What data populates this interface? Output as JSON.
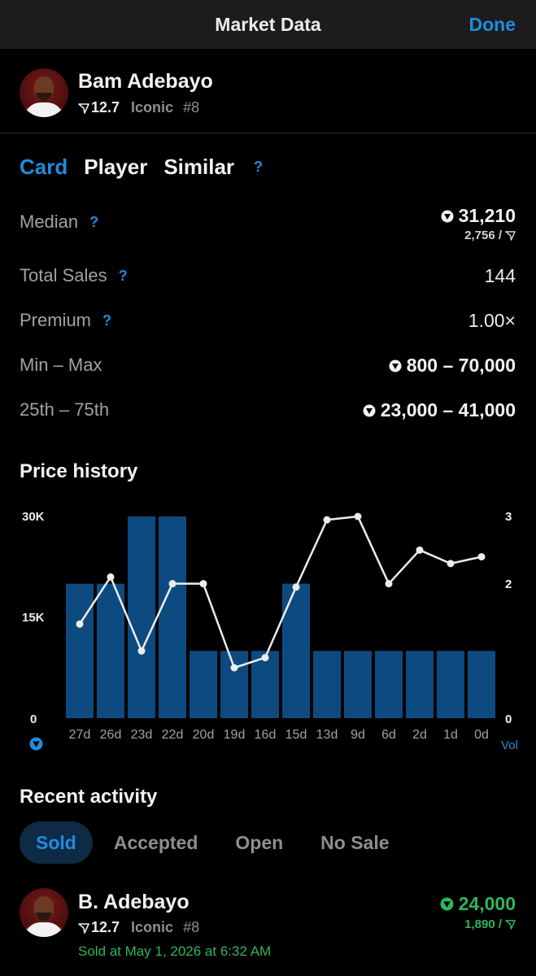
{
  "nav": {
    "title": "Market Data",
    "done_label": "Done"
  },
  "card": {
    "player_name": "Bam Adebayo",
    "rating": "12.7",
    "tier": "Iconic",
    "serial": "#8"
  },
  "tabs": {
    "card": "Card",
    "player": "Player",
    "similar": "Similar",
    "help": "?"
  },
  "stats": {
    "median_label": "Median",
    "median_value": "31,210",
    "median_sub": "2,756 /",
    "total_sales_label": "Total Sales",
    "total_sales_value": "144",
    "premium_label": "Premium",
    "premium_value": "1.00×",
    "minmax_label": "Min – Max",
    "minmax_value": "800 – 70,000",
    "pct_label": "25th – 75th",
    "pct_value": "23,000 – 41,000",
    "help": "?"
  },
  "price_history": {
    "title": "Price history",
    "vol_label": "Vol"
  },
  "chart_data": {
    "type": "bar",
    "categories": [
      "27d",
      "26d",
      "23d",
      "22d",
      "20d",
      "19d",
      "16d",
      "15d",
      "13d",
      "9d",
      "6d",
      "2d",
      "1d",
      "0d"
    ],
    "series": [
      {
        "type": "bar",
        "axis": "right",
        "values": [
          2,
          2,
          3,
          3,
          1,
          1,
          1,
          2,
          1,
          1,
          1,
          1,
          1,
          1
        ]
      },
      {
        "type": "line",
        "axis": "left",
        "values": [
          14000,
          21000,
          10000,
          20000,
          20000,
          7500,
          9000,
          19500,
          29500,
          30000,
          20000,
          25000,
          23000,
          24000
        ]
      }
    ],
    "left_axis": {
      "ticks": [
        "30K",
        "15K",
        "0"
      ],
      "ylim": [
        0,
        30000
      ]
    },
    "right_axis": {
      "ticks": [
        "3",
        "2",
        "0"
      ],
      "ylim": [
        0,
        3
      ]
    },
    "colors": {
      "bar": "#0d4a80",
      "line": "#ececec"
    }
  },
  "recent": {
    "title": "Recent activity",
    "tabs": [
      "Sold",
      "Accepted",
      "Open",
      "No Sale"
    ],
    "sale": {
      "name": "B. Adebayo",
      "rating": "12.7",
      "tier": "Iconic",
      "serial": "#8",
      "price": "24,000",
      "sub": "1,890 /",
      "date": "Sold at May 1, 2026 at 6:32 AM"
    }
  },
  "icons": {
    "currency": "currency-icon",
    "rating": "rating-icon"
  },
  "colors": {
    "accent": "#1f8ce0",
    "positive": "#2db55d",
    "navbar": "#1c1c1e"
  }
}
